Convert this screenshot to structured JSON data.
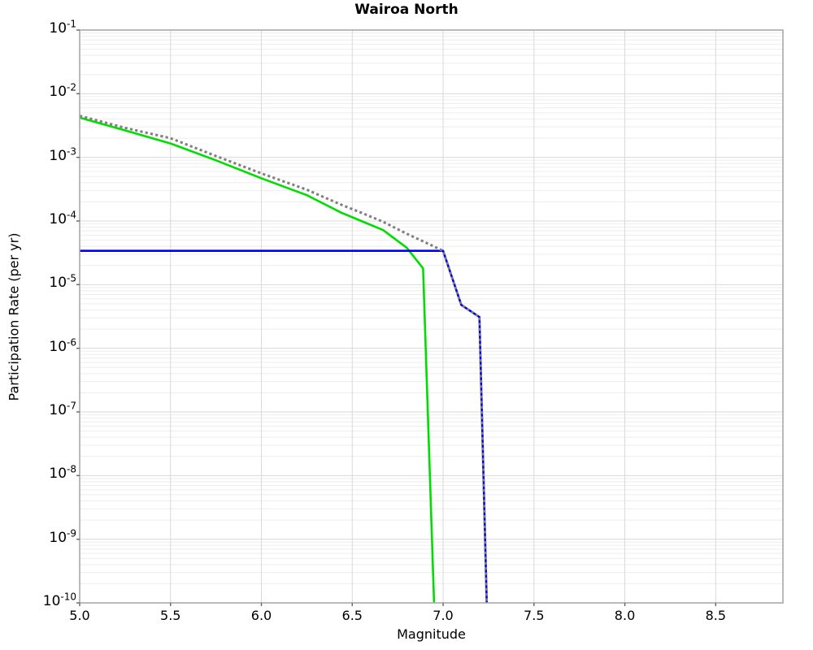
{
  "chart_data": {
    "type": "line",
    "title": "Wairoa North",
    "xlabel": "Magnitude",
    "ylabel": "Participation Rate (per yr)",
    "xlim": [
      5.0,
      8.87
    ],
    "ylim": [
      1e-10,
      0.1
    ],
    "ylim_exp": [
      -10,
      -1
    ],
    "x_ticks": [
      5.0,
      5.5,
      6.0,
      6.5,
      7.0,
      7.5,
      8.0,
      8.5
    ],
    "y_tick_exponents": [
      -1,
      -2,
      -3,
      -4,
      -5,
      -6,
      -7,
      -8,
      -9,
      -10
    ],
    "grid": true,
    "log_y": true,
    "legend_position": "none",
    "series": [
      {
        "name": "green-solid-curve",
        "color": "#00dd00",
        "style": "solid",
        "width": 2.6,
        "points": [
          [
            5.0,
            0.0042
          ],
          [
            5.25,
            0.00265
          ],
          [
            5.5,
            0.00165
          ],
          [
            5.75,
            0.0009
          ],
          [
            6.0,
            0.00047
          ],
          [
            6.25,
            0.000255
          ],
          [
            6.44,
            0.000135
          ],
          [
            6.55,
            0.0001
          ],
          [
            6.67,
            7.2e-05
          ],
          [
            6.8,
            3.8e-05
          ],
          [
            6.89,
            1.8e-05
          ],
          [
            6.95,
            1e-10
          ]
        ]
      },
      {
        "name": "blue-solid-curve",
        "color": "#0000ee",
        "style": "solid",
        "width": 2.6,
        "points": [
          [
            5.0,
            3.4e-05
          ],
          [
            7.0,
            3.4e-05
          ],
          [
            7.1,
            4.8e-06
          ],
          [
            7.2,
            3.1e-06
          ],
          [
            7.24,
            1e-10
          ]
        ]
      },
      {
        "name": "gray-dotted-curve",
        "color": "#7f7f7f",
        "style": "dotted",
        "width": 3,
        "points": [
          [
            5.0,
            0.0045
          ],
          [
            5.25,
            0.0029
          ],
          [
            5.5,
            0.002
          ],
          [
            5.75,
            0.00105
          ],
          [
            6.0,
            0.00056
          ],
          [
            6.25,
            0.00031
          ],
          [
            6.44,
            0.00018
          ],
          [
            6.55,
            0.000135
          ],
          [
            6.67,
            9.7e-05
          ],
          [
            6.8,
            6.3e-05
          ],
          [
            6.89,
            4.8e-05
          ],
          [
            7.0,
            3.4e-05
          ],
          [
            7.1,
            4.8e-06
          ],
          [
            7.2,
            3.1e-06
          ],
          [
            7.24,
            1e-10
          ]
        ]
      }
    ],
    "style_colors": {
      "major_grid": "#d9d9d9",
      "minor_grid": "#ededed",
      "frame": "#a9a9a9",
      "tick": "#666666"
    }
  }
}
